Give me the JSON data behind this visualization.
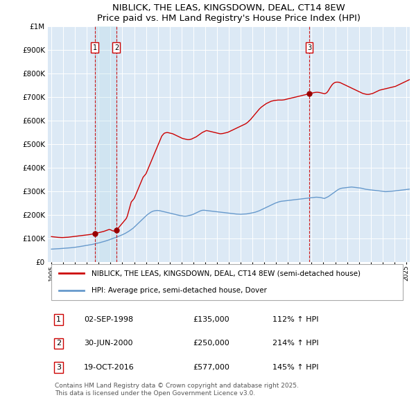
{
  "title": "NIBLICK, THE LEAS, KINGSDOWN, DEAL, CT14 8EW",
  "subtitle": "Price paid vs. HM Land Registry's House Price Index (HPI)",
  "legend_line1": "NIBLICK, THE LEAS, KINGSDOWN, DEAL, CT14 8EW (semi-detached house)",
  "legend_line2": "HPI: Average price, semi-detached house, Dover",
  "footer": "Contains HM Land Registry data © Crown copyright and database right 2025.\nThis data is licensed under the Open Government Licence v3.0.",
  "transactions": [
    {
      "num": 1,
      "date": "02-SEP-1998",
      "price": 135000,
      "pct": "112%",
      "x": 1998.67
    },
    {
      "num": 2,
      "date": "30-JUN-2000",
      "price": 250000,
      "pct": "214%",
      "x": 2000.5
    },
    {
      "num": 3,
      "date": "19-OCT-2016",
      "price": 577000,
      "pct": "145%",
      "x": 2016.8
    }
  ],
  "property_color": "#cc0000",
  "hpi_color": "#6699cc",
  "vline_color": "#cc0000",
  "background_color": "#dce9f5",
  "ylim": [
    0,
    1000000
  ],
  "xlim_start": 1994.7,
  "xlim_end": 2025.3,
  "hpi_data_monthly": {
    "start_year": 1995.0,
    "values": [
      55000,
      55200,
      55400,
      55600,
      55800,
      56000,
      56300,
      56600,
      56900,
      57200,
      57500,
      57800,
      58100,
      58400,
      58700,
      59000,
      59300,
      59600,
      60000,
      60400,
      60800,
      61200,
      61700,
      62200,
      62700,
      63300,
      63900,
      64500,
      65200,
      65900,
      66600,
      67300,
      68000,
      68700,
      69400,
      70100,
      70800,
      71500,
      72200,
      73000,
      73800,
      74600,
      75500,
      76400,
      77300,
      78200,
      79200,
      80200,
      81200,
      82300,
      83400,
      84500,
      85700,
      86900,
      88100,
      89400,
      90700,
      92100,
      93500,
      95000,
      96500,
      98000,
      99500,
      101000,
      102500,
      104000,
      105500,
      107200,
      108900,
      110600,
      112400,
      114200,
      116000,
      118000,
      120000,
      122000,
      124500,
      127000,
      129500,
      132000,
      135000,
      138000,
      141000,
      144000,
      148000,
      152000,
      156000,
      160000,
      164000,
      168000,
      172000,
      176000,
      180000,
      184000,
      188000,
      192000,
      196000,
      200000,
      203000,
      206000,
      209000,
      212000,
      214000,
      216000,
      217000,
      218000,
      218500,
      219000,
      219000,
      218500,
      218000,
      217000,
      216000,
      215000,
      214000,
      213000,
      212000,
      211000,
      210000,
      209000,
      208000,
      207000,
      206000,
      205000,
      204000,
      203000,
      202000,
      201000,
      200000,
      199000,
      198000,
      197000,
      196500,
      196000,
      195500,
      195000,
      195000,
      195500,
      196000,
      197000,
      198000,
      199000,
      200000,
      201500,
      203000,
      205000,
      207000,
      209000,
      211000,
      213000,
      215000,
      217000,
      218500,
      219500,
      220000,
      220000,
      219500,
      219000,
      218500,
      218000,
      217500,
      217000,
      216500,
      216000,
      215500,
      215000,
      214500,
      214000,
      213500,
      213000,
      212500,
      212000,
      211500,
      211000,
      210500,
      210000,
      209500,
      209000,
      208500,
      208000,
      207500,
      207000,
      206500,
      206000,
      205500,
      205000,
      204500,
      204000,
      203800,
      203600,
      203400,
      203200,
      203000,
      203200,
      203400,
      203600,
      203800,
      204000,
      204500,
      205000,
      205800,
      206600,
      207400,
      208200,
      209000,
      210000,
      211000,
      212000,
      213500,
      215000,
      216500,
      218000,
      220000,
      222000,
      224000,
      226000,
      228000,
      230000,
      232000,
      234000,
      236000,
      238000,
      240000,
      242000,
      244000,
      246000,
      248000,
      250000,
      251500,
      253000,
      254500,
      256000,
      257000,
      258000,
      258500,
      259000,
      259500,
      260000,
      260500,
      261000,
      261500,
      262000,
      262500,
      263000,
      263500,
      264000,
      264500,
      265000,
      265500,
      266000,
      266500,
      267000,
      267500,
      268000,
      268500,
      269000,
      269500,
      270000,
      270500,
      271000,
      271500,
      272000,
      272500,
      273000,
      273500,
      274000,
      274500,
      275000,
      275200,
      275400,
      275200,
      275000,
      274500,
      274000,
      273000,
      272000,
      271000,
      270000,
      272000,
      274000,
      276000,
      278000,
      281000,
      284000,
      287000,
      290000,
      293000,
      296000,
      299000,
      302000,
      305000,
      308000,
      310000,
      312000,
      313000,
      314000,
      314500,
      315000,
      315500,
      316000,
      316500,
      317000,
      317500,
      318000,
      318500,
      318500,
      318000,
      317500,
      317000,
      316500,
      316000,
      315500,
      315000,
      314500,
      314000,
      313000,
      312000,
      311000,
      310000,
      309000,
      308500,
      308000,
      307500,
      307000,
      306500,
      306000,
      305500,
      305000,
      304500,
      304000,
      303500,
      303000,
      302500,
      302000,
      301500,
      301000,
      300500,
      300000,
      299500,
      299000,
      299200,
      299400,
      299600,
      299800,
      300000,
      300500,
      301000,
      301500,
      302000,
      302500,
      303000,
      303500,
      304000,
      304500,
      305000,
      305500,
      306000,
      306500,
      307000,
      307500,
      308000,
      308500,
      309000,
      309500,
      310000,
      310500,
      311000,
      311500,
      312000
    ]
  },
  "property_data_monthly": {
    "start_year": 1995.0,
    "values": [
      108000,
      107500,
      107000,
      106500,
      106000,
      105500,
      105000,
      104800,
      104600,
      104400,
      104200,
      104000,
      104200,
      104400,
      104600,
      104800,
      105000,
      105500,
      106000,
      106500,
      107000,
      107500,
      108000,
      108500,
      109000,
      109500,
      110000,
      110500,
      111000,
      111500,
      112000,
      112500,
      113000,
      113500,
      114000,
      114500,
      115000,
      115500,
      116000,
      116800,
      117600,
      118400,
      119200,
      120000,
      121000,
      122000,
      123000,
      124000,
      125000,
      126000,
      127000,
      128000,
      129000,
      130000,
      131500,
      133000,
      134500,
      136000,
      137500,
      138000,
      137000,
      135000,
      133000,
      132000,
      131500,
      133000,
      135000,
      140000,
      145000,
      150000,
      155000,
      160000,
      165000,
      170000,
      175000,
      180000,
      185000,
      195000,
      210000,
      225000,
      240000,
      255000,
      260000,
      265000,
      270000,
      280000,
      290000,
      300000,
      310000,
      320000,
      330000,
      340000,
      350000,
      360000,
      365000,
      370000,
      375000,
      385000,
      395000,
      405000,
      415000,
      425000,
      435000,
      445000,
      455000,
      465000,
      475000,
      485000,
      495000,
      505000,
      515000,
      525000,
      535000,
      540000,
      545000,
      548000,
      549000,
      550000,
      550000,
      549000,
      548000,
      547000,
      546000,
      545000,
      543000,
      541000,
      539000,
      537000,
      535000,
      533000,
      531000,
      529000,
      527000,
      525000,
      524000,
      523000,
      522000,
      521000,
      520000,
      520000,
      520000,
      521000,
      522000,
      524000,
      526000,
      528000,
      530000,
      532000,
      535000,
      538000,
      541000,
      544000,
      547000,
      550000,
      552000,
      554000,
      556000,
      558000,
      558000,
      557000,
      556000,
      555000,
      554000,
      553000,
      552000,
      551000,
      550000,
      549000,
      548000,
      547000,
      546000,
      545000,
      545000,
      545500,
      546000,
      547000,
      548000,
      549000,
      550000,
      551000,
      553000,
      555000,
      557000,
      559000,
      561000,
      563000,
      565000,
      567000,
      569000,
      571000,
      573000,
      575000,
      577000,
      579000,
      581000,
      583000,
      585000,
      587000,
      590000,
      593000,
      597000,
      601000,
      605000,
      610000,
      615000,
      620000,
      625000,
      630000,
      635000,
      640000,
      645000,
      650000,
      654000,
      658000,
      661000,
      664000,
      667000,
      670000,
      673000,
      675000,
      677000,
      679000,
      681000,
      683000,
      684000,
      685000,
      686000,
      686500,
      687000,
      687500,
      688000,
      688000,
      688000,
      688000,
      688000,
      688500,
      689000,
      690000,
      691000,
      692000,
      693000,
      694000,
      695000,
      696000,
      697000,
      698000,
      699000,
      700000,
      701000,
      702000,
      703000,
      704000,
      705000,
      706000,
      707000,
      708000,
      709000,
      710000,
      711000,
      712000,
      713000,
      714000,
      715000,
      716000,
      717000,
      718000,
      719000,
      720000,
      720500,
      721000,
      721000,
      720500,
      720000,
      719000,
      718000,
      717000,
      716000,
      715000,
      716000,
      718000,
      722000,
      728000,
      735000,
      742000,
      748000,
      754000,
      758000,
      761000,
      763000,
      764000,
      764000,
      764000,
      763000,
      762000,
      760000,
      758000,
      756000,
      754000,
      752000,
      750000,
      748000,
      746000,
      744000,
      742000,
      740000,
      738000,
      736000,
      734000,
      732000,
      730000,
      728000,
      726000,
      724000,
      722000,
      720000,
      718000,
      716000,
      715000,
      714000,
      713000,
      712000,
      712000,
      712000,
      713000,
      714000,
      715000,
      716000,
      718000,
      720000,
      722000,
      724000,
      726000,
      728000,
      730000,
      731000,
      732000,
      733000,
      734000,
      735000,
      736000,
      737000,
      738000,
      739000,
      740000,
      741000,
      742000,
      743000,
      744000,
      745000,
      746000,
      748000,
      750000,
      752000,
      754000,
      756000,
      758000,
      760000,
      762000,
      764000,
      766000,
      768000,
      770000,
      772000,
      774000,
      776000,
      778000,
      780000,
      782000,
      784000
    ]
  }
}
